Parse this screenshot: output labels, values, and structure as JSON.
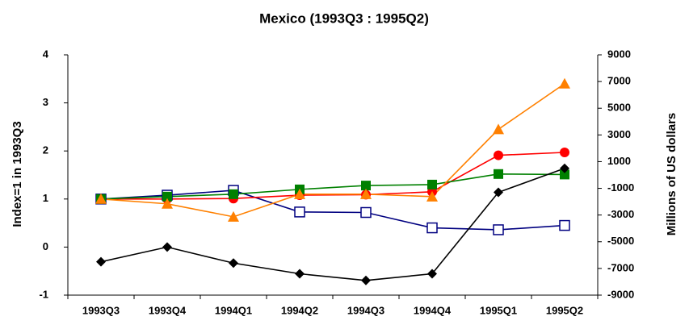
{
  "chart_data": {
    "type": "line",
    "title": "Mexico (1993Q3 : 1995Q2)",
    "y_label": "Index=1 in 1993Q3",
    "y2_label": "Millions of US dollars",
    "categories": [
      "1993Q3",
      "1993Q4",
      "1994Q1",
      "1994Q2",
      "1994Q3",
      "1994Q4",
      "1995Q1",
      "1995Q2"
    ],
    "series": [
      {
        "color": "#000080",
        "marker": "square-open",
        "values": [
          1,
          1.08,
          1.18,
          0.73,
          0.72,
          0.4,
          0.36,
          0.45
        ]
      },
      {
        "color": "#ff0000",
        "marker": "circle",
        "values": [
          1,
          1.0,
          1.01,
          1.08,
          1.09,
          1.15,
          1.91,
          1.97
        ]
      },
      {
        "color": "#008000",
        "marker": "square",
        "values": [
          1,
          1.05,
          1.1,
          1.2,
          1.28,
          1.3,
          1.52,
          1.51
        ]
      },
      {
        "color": "#ff8000",
        "marker": "triangle",
        "values": [
          1,
          0.9,
          0.63,
          1.1,
          1.1,
          1.05,
          2.45,
          3.4
        ]
      },
      {
        "color": "#000000",
        "marker": "diamond",
        "axis": "y2",
        "values": [
          -6500,
          -5400,
          -6600,
          -7400,
          -7900,
          -7400,
          -1300,
          500
        ]
      }
    ],
    "ylim": [
      -1,
      4
    ],
    "yticks": [
      -1,
      0,
      1,
      2,
      3,
      4
    ],
    "y2lim": [
      -9000,
      9000
    ],
    "y2ticks": [
      -9000,
      -7000,
      -5000,
      -3000,
      -1000,
      1000,
      3000,
      5000,
      7000,
      9000
    ],
    "grid": false
  }
}
